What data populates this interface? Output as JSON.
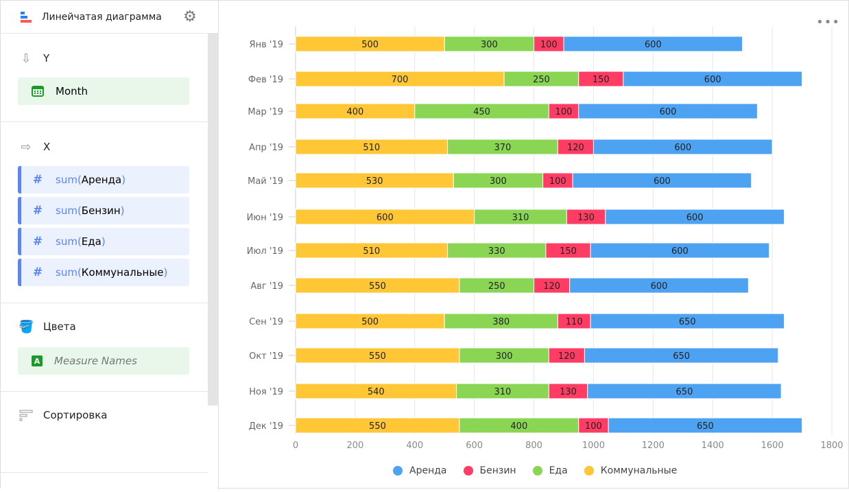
{
  "header": {
    "title": "Линейчатая диаграмма",
    "chart_icon": "bar-chart-icon",
    "settings_icon": "gear-icon"
  },
  "sections": {
    "y": {
      "label": "Y",
      "icon": "arrow-down-icon",
      "fields": [
        {
          "label": "Month",
          "icon": "calendar-icon"
        }
      ]
    },
    "x": {
      "label": "X",
      "icon": "arrow-right-icon",
      "fields": [
        {
          "fn": "sum",
          "open": "(",
          "name": "Аренда",
          "close": ")"
        },
        {
          "fn": "sum",
          "open": "(",
          "name": "Бензин",
          "close": ")"
        },
        {
          "fn": "sum",
          "open": "(",
          "name": "Еда",
          "close": ")"
        },
        {
          "fn": "sum",
          "open": "(",
          "name": "Коммунальные",
          "close": ")"
        }
      ]
    },
    "colors": {
      "label": "Цвета",
      "icon": "paint-bucket-icon",
      "fields": [
        {
          "label": "Measure Names",
          "badge": "A"
        }
      ]
    },
    "sort": {
      "label": "Сортировка",
      "icon": "sort-icon"
    }
  },
  "chart_data": {
    "type": "bar",
    "orientation": "horizontal",
    "stacked": true,
    "categories": [
      "Янв '19",
      "Фев '19",
      "Мар '19",
      "Апр '19",
      "Май '19",
      "Июн '19",
      "Июл '19",
      "Авг '19",
      "Сен '19",
      "Окт '19",
      "Ноя '19",
      "Дек '19"
    ],
    "series": [
      {
        "name": "Коммунальные",
        "color": "#ffc636",
        "values": [
          500,
          700,
          400,
          510,
          530,
          600,
          510,
          550,
          500,
          550,
          540,
          550
        ]
      },
      {
        "name": "Еда",
        "color": "#8ad554",
        "values": [
          300,
          250,
          450,
          370,
          300,
          310,
          330,
          250,
          380,
          300,
          310,
          400
        ]
      },
      {
        "name": "Бензин",
        "color": "#ff3d64",
        "values": [
          100,
          150,
          100,
          120,
          100,
          130,
          150,
          120,
          110,
          120,
          130,
          100
        ]
      },
      {
        "name": "Аренда",
        "color": "#4da2f1",
        "values": [
          600,
          600,
          600,
          600,
          600,
          600,
          600,
          600,
          650,
          650,
          650,
          650
        ]
      }
    ],
    "legend_order": [
      "Аренда",
      "Бензин",
      "Еда",
      "Коммунальные"
    ],
    "xlim": [
      0,
      1800
    ],
    "xticks": [
      "0",
      "200",
      "400",
      "600",
      "800",
      "1000",
      "1200",
      "1400",
      "1600",
      "1800"
    ],
    "grid": true,
    "data_labels": true,
    "legend": "bottom"
  }
}
